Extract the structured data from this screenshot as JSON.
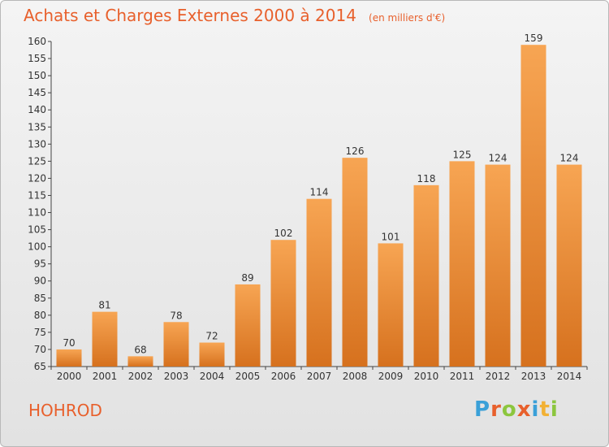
{
  "chart_data": {
    "type": "bar",
    "title": "Achats et Charges Externes 2000 à 2014",
    "subtitle": "(en milliers d'€)",
    "categories": [
      "2000",
      "2001",
      "2002",
      "2003",
      "2004",
      "2005",
      "2006",
      "2007",
      "2008",
      "2009",
      "2010",
      "2011",
      "2012",
      "2013",
      "2014"
    ],
    "values": [
      70,
      81,
      68,
      78,
      72,
      89,
      102,
      114,
      126,
      101,
      118,
      125,
      124,
      159,
      124
    ],
    "ylim": [
      65,
      160
    ],
    "ytick_step": 5,
    "grid": false,
    "legend": "none",
    "bar_color_top": "#f7a553",
    "bar_color_bottom": "#d6711e",
    "text_color": "#e8602c"
  },
  "footer": {
    "commune": "HOHROD",
    "logo": {
      "letters": [
        "P",
        "r",
        "o",
        "x",
        "i",
        "t",
        "i"
      ],
      "colors": [
        "#3aa0d8",
        "#e8602c",
        "#8cc63e",
        "#e8602c",
        "#3aa0d8",
        "#f2b134",
        "#8cc63e"
      ]
    }
  }
}
